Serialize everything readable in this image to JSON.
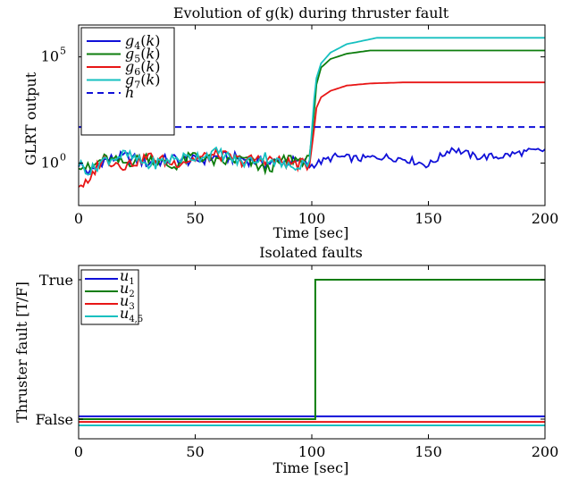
{
  "chart_data": [
    {
      "type": "line",
      "title": "Evolution of g(k) during thruster fault",
      "xlabel": "Time [sec]",
      "ylabel": "GLRT output",
      "xlim": [
        0,
        200
      ],
      "ylim_log10": [
        -2,
        6.5
      ],
      "yscale": "log",
      "x_ticks": [
        0,
        50,
        100,
        150,
        200
      ],
      "x_tick_labels": [
        "0",
        "50",
        "100",
        "150",
        "200"
      ],
      "y_ticks_log10": [
        0,
        5
      ],
      "y_tick_labels": [
        "10^0",
        "10^5"
      ],
      "grid": false,
      "legend_position": "top-left",
      "series": [
        {
          "name": "g4(k)",
          "color": "#1010d8",
          "style": "solid",
          "x": [
            0,
            5,
            10,
            20,
            30,
            40,
            50,
            60,
            70,
            80,
            90,
            100,
            110,
            120,
            130,
            140,
            150,
            160,
            170,
            180,
            190,
            200
          ],
          "y_log10": [
            0,
            -0.5,
            0.1,
            0.3,
            0,
            0.2,
            0.1,
            0.3,
            0.2,
            0,
            0.1,
            -0.1,
            0.3,
            0.2,
            0.3,
            0.2,
            -0.1,
            0.7,
            0.3,
            0.3,
            0.5,
            0.6
          ]
        },
        {
          "name": "g5(k)",
          "color": "#0d7d0d",
          "style": "solid",
          "x": [
            0,
            5,
            10,
            20,
            30,
            40,
            50,
            60,
            70,
            80,
            90,
            99,
            101,
            102,
            104,
            108,
            115,
            125,
            140,
            160,
            180,
            200
          ],
          "y_log10": [
            0,
            -0.3,
            0.2,
            0,
            0.3,
            -0.2,
            0.4,
            0,
            0.2,
            -0.3,
            0.2,
            0.1,
            2.4,
            3.7,
            4.5,
            4.9,
            5.15,
            5.3,
            5.3,
            5.3,
            5.3,
            5.3
          ]
        },
        {
          "name": "g6(k)",
          "color": "#e81616",
          "style": "solid",
          "x": [
            0,
            5,
            6,
            10,
            20,
            30,
            40,
            50,
            60,
            70,
            80,
            90,
            99,
            101,
            102,
            104,
            108,
            115,
            125,
            140,
            160,
            180,
            200
          ],
          "y_log10": [
            -1,
            -1,
            -0.5,
            0.2,
            -0.1,
            0.3,
            0,
            0.2,
            0.4,
            0.1,
            0.2,
            0,
            -0.1,
            1.6,
            2.6,
            3.1,
            3.4,
            3.65,
            3.75,
            3.8,
            3.8,
            3.8,
            3.8
          ]
        },
        {
          "name": "g7(k)",
          "color": "#16c0c0",
          "style": "solid",
          "x": [
            0,
            5,
            10,
            20,
            30,
            40,
            50,
            60,
            70,
            80,
            90,
            99,
            100,
            101,
            102,
            104,
            108,
            115,
            128,
            140,
            160,
            180,
            200
          ],
          "y_log10": [
            0,
            -0.4,
            0.1,
            0.4,
            -0.1,
            0.2,
            0.3,
            0.5,
            0,
            0.3,
            -0.2,
            0.1,
            1.5,
            3,
            4,
            4.7,
            5.2,
            5.6,
            5.9,
            5.9,
            5.9,
            5.9,
            5.9
          ]
        },
        {
          "name": "h",
          "color": "#1010d8",
          "style": "dashed",
          "x": [
            0,
            200
          ],
          "y_log10": [
            1.7,
            1.7
          ]
        }
      ]
    },
    {
      "type": "line",
      "title": "Isolated faults",
      "xlabel": "Time [sec]",
      "ylabel": "Thruster fault [T/F]",
      "xlim": [
        0,
        200
      ],
      "x_ticks": [
        0,
        50,
        100,
        150,
        200
      ],
      "x_tick_labels": [
        "0",
        "50",
        "100",
        "150",
        "200"
      ],
      "y_categories": [
        "False",
        "True"
      ],
      "grid": false,
      "legend_position": "top-left",
      "series": [
        {
          "name": "u1",
          "color": "#1010d8",
          "x": [
            0,
            200
          ],
          "y": [
            0.02,
            0.02
          ]
        },
        {
          "name": "u2",
          "color": "#0d7d0d",
          "x": [
            0,
            101.5,
            101.5,
            200
          ],
          "y": [
            0,
            0,
            1,
            1
          ]
        },
        {
          "name": "u3",
          "color": "#e81616",
          "x": [
            0,
            200
          ],
          "y": [
            -0.02,
            -0.02
          ]
        },
        {
          "name": "u4,5",
          "color": "#16c0c0",
          "x": [
            0,
            200
          ],
          "y": [
            -0.045,
            -0.045
          ]
        }
      ]
    }
  ]
}
